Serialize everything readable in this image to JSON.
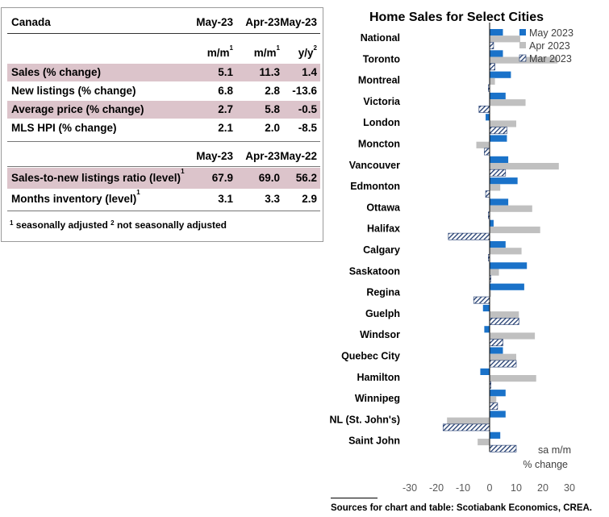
{
  "table": {
    "header": {
      "label": "Canada",
      "cols": [
        "May-23",
        "Apr-23",
        "May-23"
      ]
    },
    "units": [
      "m/m",
      "m/m",
      "y/y"
    ],
    "units_sup": [
      "1",
      "1",
      "2"
    ],
    "rows1": [
      {
        "label": "Sales (% change)",
        "values": [
          "5.1",
          "11.3",
          "1.4"
        ],
        "shaded": true
      },
      {
        "label": "New listings (% change)",
        "values": [
          "6.8",
          "2.8",
          "-13.6"
        ],
        "shaded": false
      },
      {
        "label": "Average price (% change)",
        "values": [
          "2.7",
          "5.8",
          "-0.5"
        ],
        "shaded": true
      },
      {
        "label": "MLS HPI (% change)",
        "values": [
          "2.1",
          "2.0",
          "-8.5"
        ],
        "shaded": false
      }
    ],
    "header2": {
      "cols": [
        "May-23",
        "Apr-23",
        "May-22"
      ]
    },
    "rows2": [
      {
        "label": "Sales-to-new listings ratio (level)",
        "sup": "1",
        "values": [
          "67.9",
          "69.0",
          "56.2"
        ],
        "shaded": true
      },
      {
        "label": "Months inventory (level)",
        "sup": "1",
        "values": [
          "3.1",
          "3.3",
          "2.9"
        ],
        "shaded": false
      }
    ],
    "footnote": {
      "sup1": "1",
      "text1": " seasonally adjusted ",
      "sup2": "2",
      "text2": " not seasonally adjusted"
    }
  },
  "colors": {
    "may": "#1a72c9",
    "apr": "#c0c0c0",
    "mar": "#1f3a6e",
    "shade": "#dcc4cb"
  },
  "chart_data": {
    "type": "bar",
    "orientation": "horizontal",
    "title": "Home Sales for Select Cities",
    "categories": [
      "National",
      "Toronto",
      "Montreal",
      "Victoria",
      "London",
      "Moncton",
      "Vancouver",
      "Edmonton",
      "Ottawa",
      "Halifax",
      "Calgary",
      "Saskatoon",
      "Regina",
      "Guelph",
      "Windsor",
      "Quebec City",
      "Hamilton",
      "Winnipeg",
      "NL (St. John's)",
      "Saint John"
    ],
    "series": [
      {
        "name": "May 2023",
        "pattern": "solid",
        "values": [
          5,
          5,
          8,
          6,
          -1.5,
          6.5,
          7,
          10.5,
          7,
          1.5,
          6,
          14,
          13,
          -2.5,
          -2,
          5,
          -3.5,
          6,
          6,
          4
        ]
      },
      {
        "name": "Apr 2023",
        "pattern": "solid",
        "values": [
          11.5,
          25.5,
          2,
          13.5,
          10,
          -5,
          26,
          4,
          16,
          19,
          12,
          3.5,
          0.5,
          11,
          17,
          10,
          17.5,
          2.5,
          -16,
          -4.5
        ]
      },
      {
        "name": "Mar 2023",
        "pattern": "hatched",
        "values": [
          1.5,
          2,
          -0.5,
          -4,
          6.5,
          -2,
          6,
          -1.5,
          -0.5,
          -15.5,
          -0.5,
          0.5,
          -6,
          11,
          5,
          10,
          0.5,
          3,
          -17.5,
          10
        ]
      }
    ],
    "xlim": [
      -30,
      30
    ],
    "xticks": [
      -30,
      -20,
      -10,
      0,
      10,
      20,
      30
    ],
    "unit_label_line1": "sa m/m",
    "unit_label_line2": "% change",
    "legend_position": "top-right"
  },
  "source": "Sources for chart and table: Scotiabank Economics, CREA."
}
